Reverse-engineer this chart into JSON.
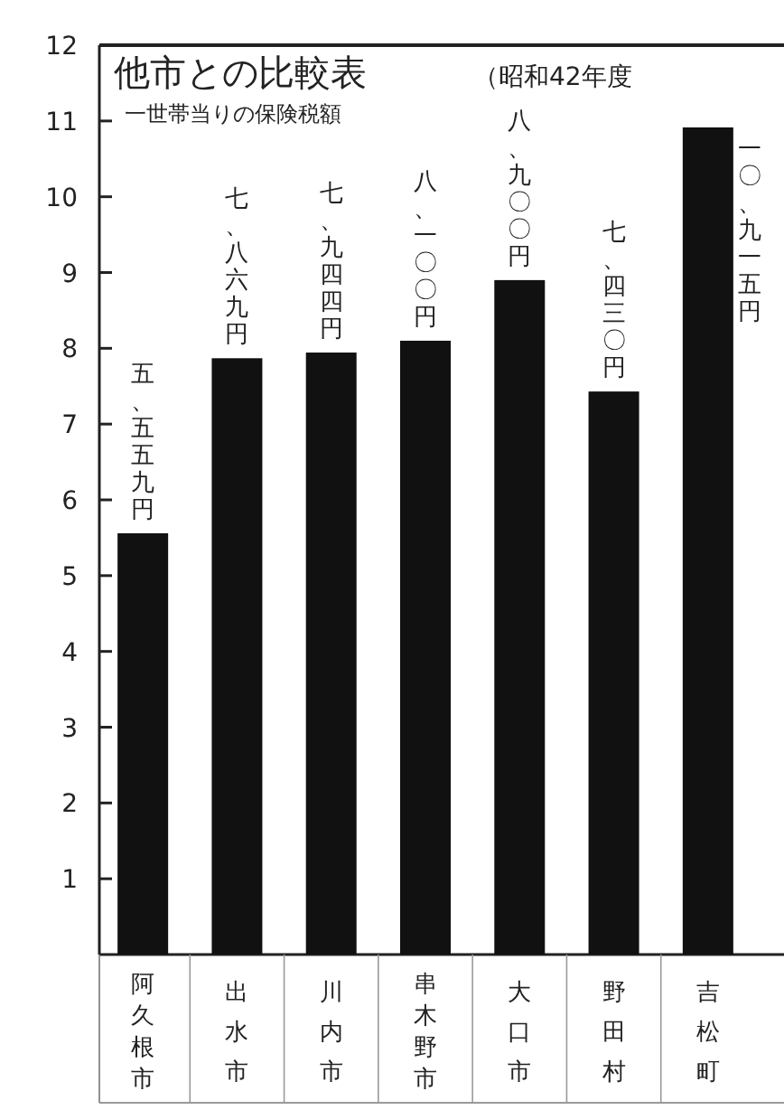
{
  "chart_data": {
    "type": "bar",
    "title": "他市との比較表",
    "subtitle": "一世帯当りの保険税額",
    "annotations": [
      "（昭和42年度"
    ],
    "categories": [
      "阿久根市",
      "出水市",
      "川内市",
      "串木野市",
      "大口市",
      "野田村",
      "吉松町"
    ],
    "values": [
      5.559,
      7.869,
      7.944,
      8.1,
      8.9,
      7.43,
      10.915
    ],
    "value_labels": [
      "五、五五九円",
      "七、八六九円",
      "七、九四四円",
      "八、一〇〇円",
      "八、九〇〇円",
      "七、四三〇円",
      "一〇、九一五円"
    ],
    "color": "#111111",
    "ylim": [
      0,
      12
    ],
    "yticks": [
      1,
      2,
      3,
      4,
      5,
      6,
      7,
      8,
      9,
      10,
      11,
      12
    ]
  }
}
